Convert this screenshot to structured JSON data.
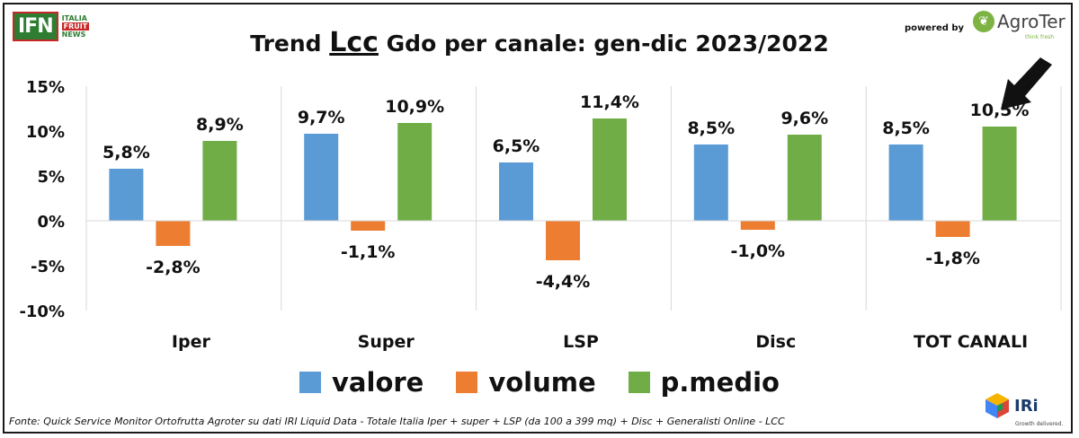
{
  "header": {
    "ifn_logo": {
      "mark": "IFN",
      "lines": [
        "ITALIA",
        "FRUIT",
        "NEWS"
      ]
    },
    "title_pre": "Trend ",
    "title_emph": "Lcc",
    "title_post": " Gdo per canale: gen-dic 2023/2022",
    "powered_by": "powered by",
    "agroter": {
      "name": "AgroTer",
      "tagline": "think fresh"
    }
  },
  "footer": {
    "source": "Fonte: Quick Service Monitor Ortofrutta Agroter su dati IRI Liquid Data - Totale Italia Iper + super + LSP (da 100 a 399 mq) + Disc + Generalisti Online - LCC",
    "iri": {
      "name": "IRi",
      "tagline": "Growth delivered."
    }
  },
  "chart_data": {
    "type": "bar",
    "categories": [
      "Iper",
      "Super",
      "LSP",
      "Disc",
      "TOT CANALI"
    ],
    "series": [
      {
        "name": "valore",
        "color": "#5b9bd5",
        "values": [
          5.8,
          9.7,
          6.5,
          8.5,
          8.5
        ],
        "labels": [
          "5,8%",
          "9,7%",
          "6,5%",
          "8,5%",
          "8,5%"
        ]
      },
      {
        "name": "volume",
        "color": "#ed7d31",
        "values": [
          -2.8,
          -1.1,
          -4.4,
          -1.0,
          -1.8
        ],
        "labels": [
          "-2,8%",
          "-1,1%",
          "-4,4%",
          "-1,0%",
          "-1,8%"
        ]
      },
      {
        "name": "p.medio",
        "color": "#70ad47",
        "values": [
          8.9,
          10.9,
          11.4,
          9.6,
          10.5
        ],
        "labels": [
          "8,9%",
          "10,9%",
          "11,4%",
          "9,6%",
          "10,5%"
        ]
      }
    ],
    "ylim": [
      -10,
      15
    ],
    "yticks": [
      15,
      10,
      5,
      0,
      -5,
      -10
    ],
    "ytick_labels": [
      "15%",
      "10%",
      "5%",
      "0%",
      "-5%",
      "-10%"
    ],
    "grid": "vertical category separators",
    "legend": "bottom",
    "annotation": {
      "type": "arrow",
      "target": "TOT CANALI p.medio",
      "color": "#111111"
    }
  }
}
